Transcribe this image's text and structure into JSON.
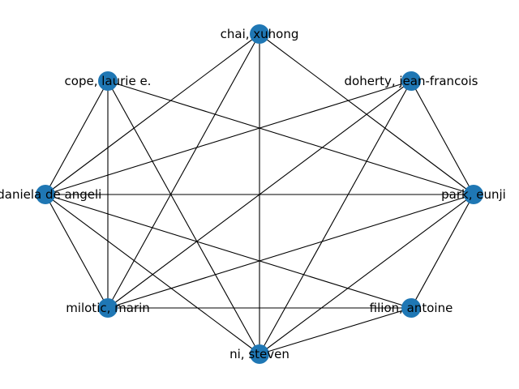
{
  "graph": {
    "node_color": "#1f77b4",
    "edge_color": "#000000",
    "nodes": [
      {
        "id": "chai",
        "label": "chai, xuhong"
      },
      {
        "id": "cope",
        "label": "cope, laurie e."
      },
      {
        "id": "doherty",
        "label": "doherty, jean-francois"
      },
      {
        "id": "daniela",
        "label": ", daniela de angeli"
      },
      {
        "id": "park",
        "label": "park, eunji"
      },
      {
        "id": "milotic",
        "label": "milotic, marin"
      },
      {
        "id": "filion",
        "label": "filion, antoine"
      },
      {
        "id": "ni",
        "label": "ni, steven"
      }
    ],
    "edges": [
      [
        "chai",
        "daniela"
      ],
      [
        "chai",
        "milotic"
      ],
      [
        "chai",
        "ni"
      ],
      [
        "chai",
        "park"
      ],
      [
        "cope",
        "daniela"
      ],
      [
        "cope",
        "milotic"
      ],
      [
        "cope",
        "ni"
      ],
      [
        "cope",
        "park"
      ],
      [
        "doherty",
        "daniela"
      ],
      [
        "doherty",
        "milotic"
      ],
      [
        "doherty",
        "ni"
      ],
      [
        "doherty",
        "park"
      ],
      [
        "daniela",
        "park"
      ],
      [
        "daniela",
        "milotic"
      ],
      [
        "daniela",
        "ni"
      ],
      [
        "daniela",
        "filion"
      ],
      [
        "park",
        "milotic"
      ],
      [
        "park",
        "ni"
      ],
      [
        "park",
        "filion"
      ],
      [
        "milotic",
        "filion"
      ],
      [
        "ni",
        "filion"
      ]
    ]
  }
}
